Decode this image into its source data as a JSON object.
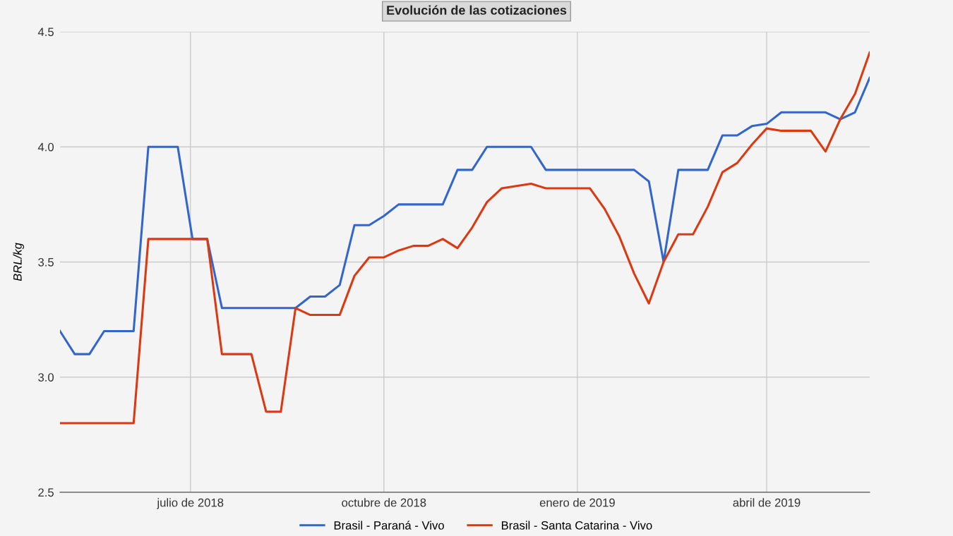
{
  "chart_data": {
    "type": "line",
    "title": "Evolución de las cotizaciones",
    "ylabel": "BRL/kg",
    "x": [
      "2018-04-30",
      "2018-05-07",
      "2018-05-14",
      "2018-05-21",
      "2018-05-28",
      "2018-06-04",
      "2018-06-11",
      "2018-06-18",
      "2018-06-25",
      "2018-07-02",
      "2018-07-09",
      "2018-07-16",
      "2018-07-23",
      "2018-07-30",
      "2018-08-06",
      "2018-08-13",
      "2018-08-20",
      "2018-08-27",
      "2018-09-03",
      "2018-09-10",
      "2018-09-17",
      "2018-09-24",
      "2018-10-01",
      "2018-10-08",
      "2018-10-15",
      "2018-10-22",
      "2018-10-29",
      "2018-11-05",
      "2018-11-12",
      "2018-11-19",
      "2018-11-26",
      "2018-12-03",
      "2018-12-10",
      "2018-12-17",
      "2018-12-24",
      "2018-12-31",
      "2019-01-07",
      "2019-01-14",
      "2019-01-21",
      "2019-01-28",
      "2019-02-04",
      "2019-02-11",
      "2019-02-18",
      "2019-02-25",
      "2019-03-04",
      "2019-03-11",
      "2019-03-18",
      "2019-03-25",
      "2019-04-01",
      "2019-04-08",
      "2019-04-15",
      "2019-04-22",
      "2019-04-29",
      "2019-05-06",
      "2019-05-13",
      "2019-05-20"
    ],
    "series": [
      {
        "name": "Brasil - Paraná - Vivo",
        "color": "#3366cc",
        "values": [
          3.2,
          3.1,
          3.1,
          3.2,
          3.2,
          3.2,
          4.0,
          4.0,
          4.0,
          3.6,
          3.6,
          3.3,
          3.3,
          3.3,
          3.3,
          3.3,
          3.3,
          3.35,
          3.35,
          3.4,
          3.66,
          3.66,
          3.7,
          3.75,
          3.75,
          3.75,
          3.75,
          3.9,
          3.9,
          4.0,
          4.0,
          4.0,
          4.0,
          3.9,
          3.9,
          3.9,
          3.9,
          3.9,
          3.9,
          3.9,
          3.85,
          3.5,
          3.9,
          3.9,
          3.9,
          4.05,
          4.05,
          4.09,
          4.1,
          4.15,
          4.15,
          4.15,
          4.15,
          4.12,
          4.15,
          4.3
        ]
      },
      {
        "name": "Brasil - Santa Catarina - Vivo",
        "color": "#dc3912",
        "values": [
          2.8,
          2.8,
          2.8,
          2.8,
          2.8,
          2.8,
          3.6,
          3.6,
          3.6,
          3.6,
          3.6,
          3.1,
          3.1,
          3.1,
          2.85,
          2.85,
          3.3,
          3.27,
          3.27,
          3.27,
          3.44,
          3.52,
          3.52,
          3.55,
          3.57,
          3.57,
          3.6,
          3.56,
          3.65,
          3.76,
          3.82,
          3.83,
          3.84,
          3.82,
          3.82,
          3.82,
          3.82,
          3.73,
          3.61,
          3.45,
          3.32,
          3.5,
          3.62,
          3.62,
          3.74,
          3.89,
          3.93,
          4.01,
          4.08,
          4.07,
          4.07,
          4.07,
          3.98,
          4.12,
          4.23,
          4.41
        ]
      }
    ],
    "xlim": [
      "2018-04-30",
      "2019-05-20"
    ],
    "xticks": [
      {
        "value": "2018-07-01",
        "label": "julio de 2018"
      },
      {
        "value": "2018-10-01",
        "label": "octubre de 2018"
      },
      {
        "value": "2019-01-01",
        "label": "enero de 2019"
      },
      {
        "value": "2019-04-01",
        "label": "abril de 2019"
      }
    ],
    "ylim": [
      2.5,
      4.5
    ],
    "yticks": [
      2.5,
      {
        "value": 3,
        "label": "3.0"
      },
      3.5,
      {
        "value": 4,
        "label": "4.0"
      },
      4.5
    ],
    "grid": true,
    "legend": "bottom",
    "marker": "none",
    "line_style": "solid"
  }
}
